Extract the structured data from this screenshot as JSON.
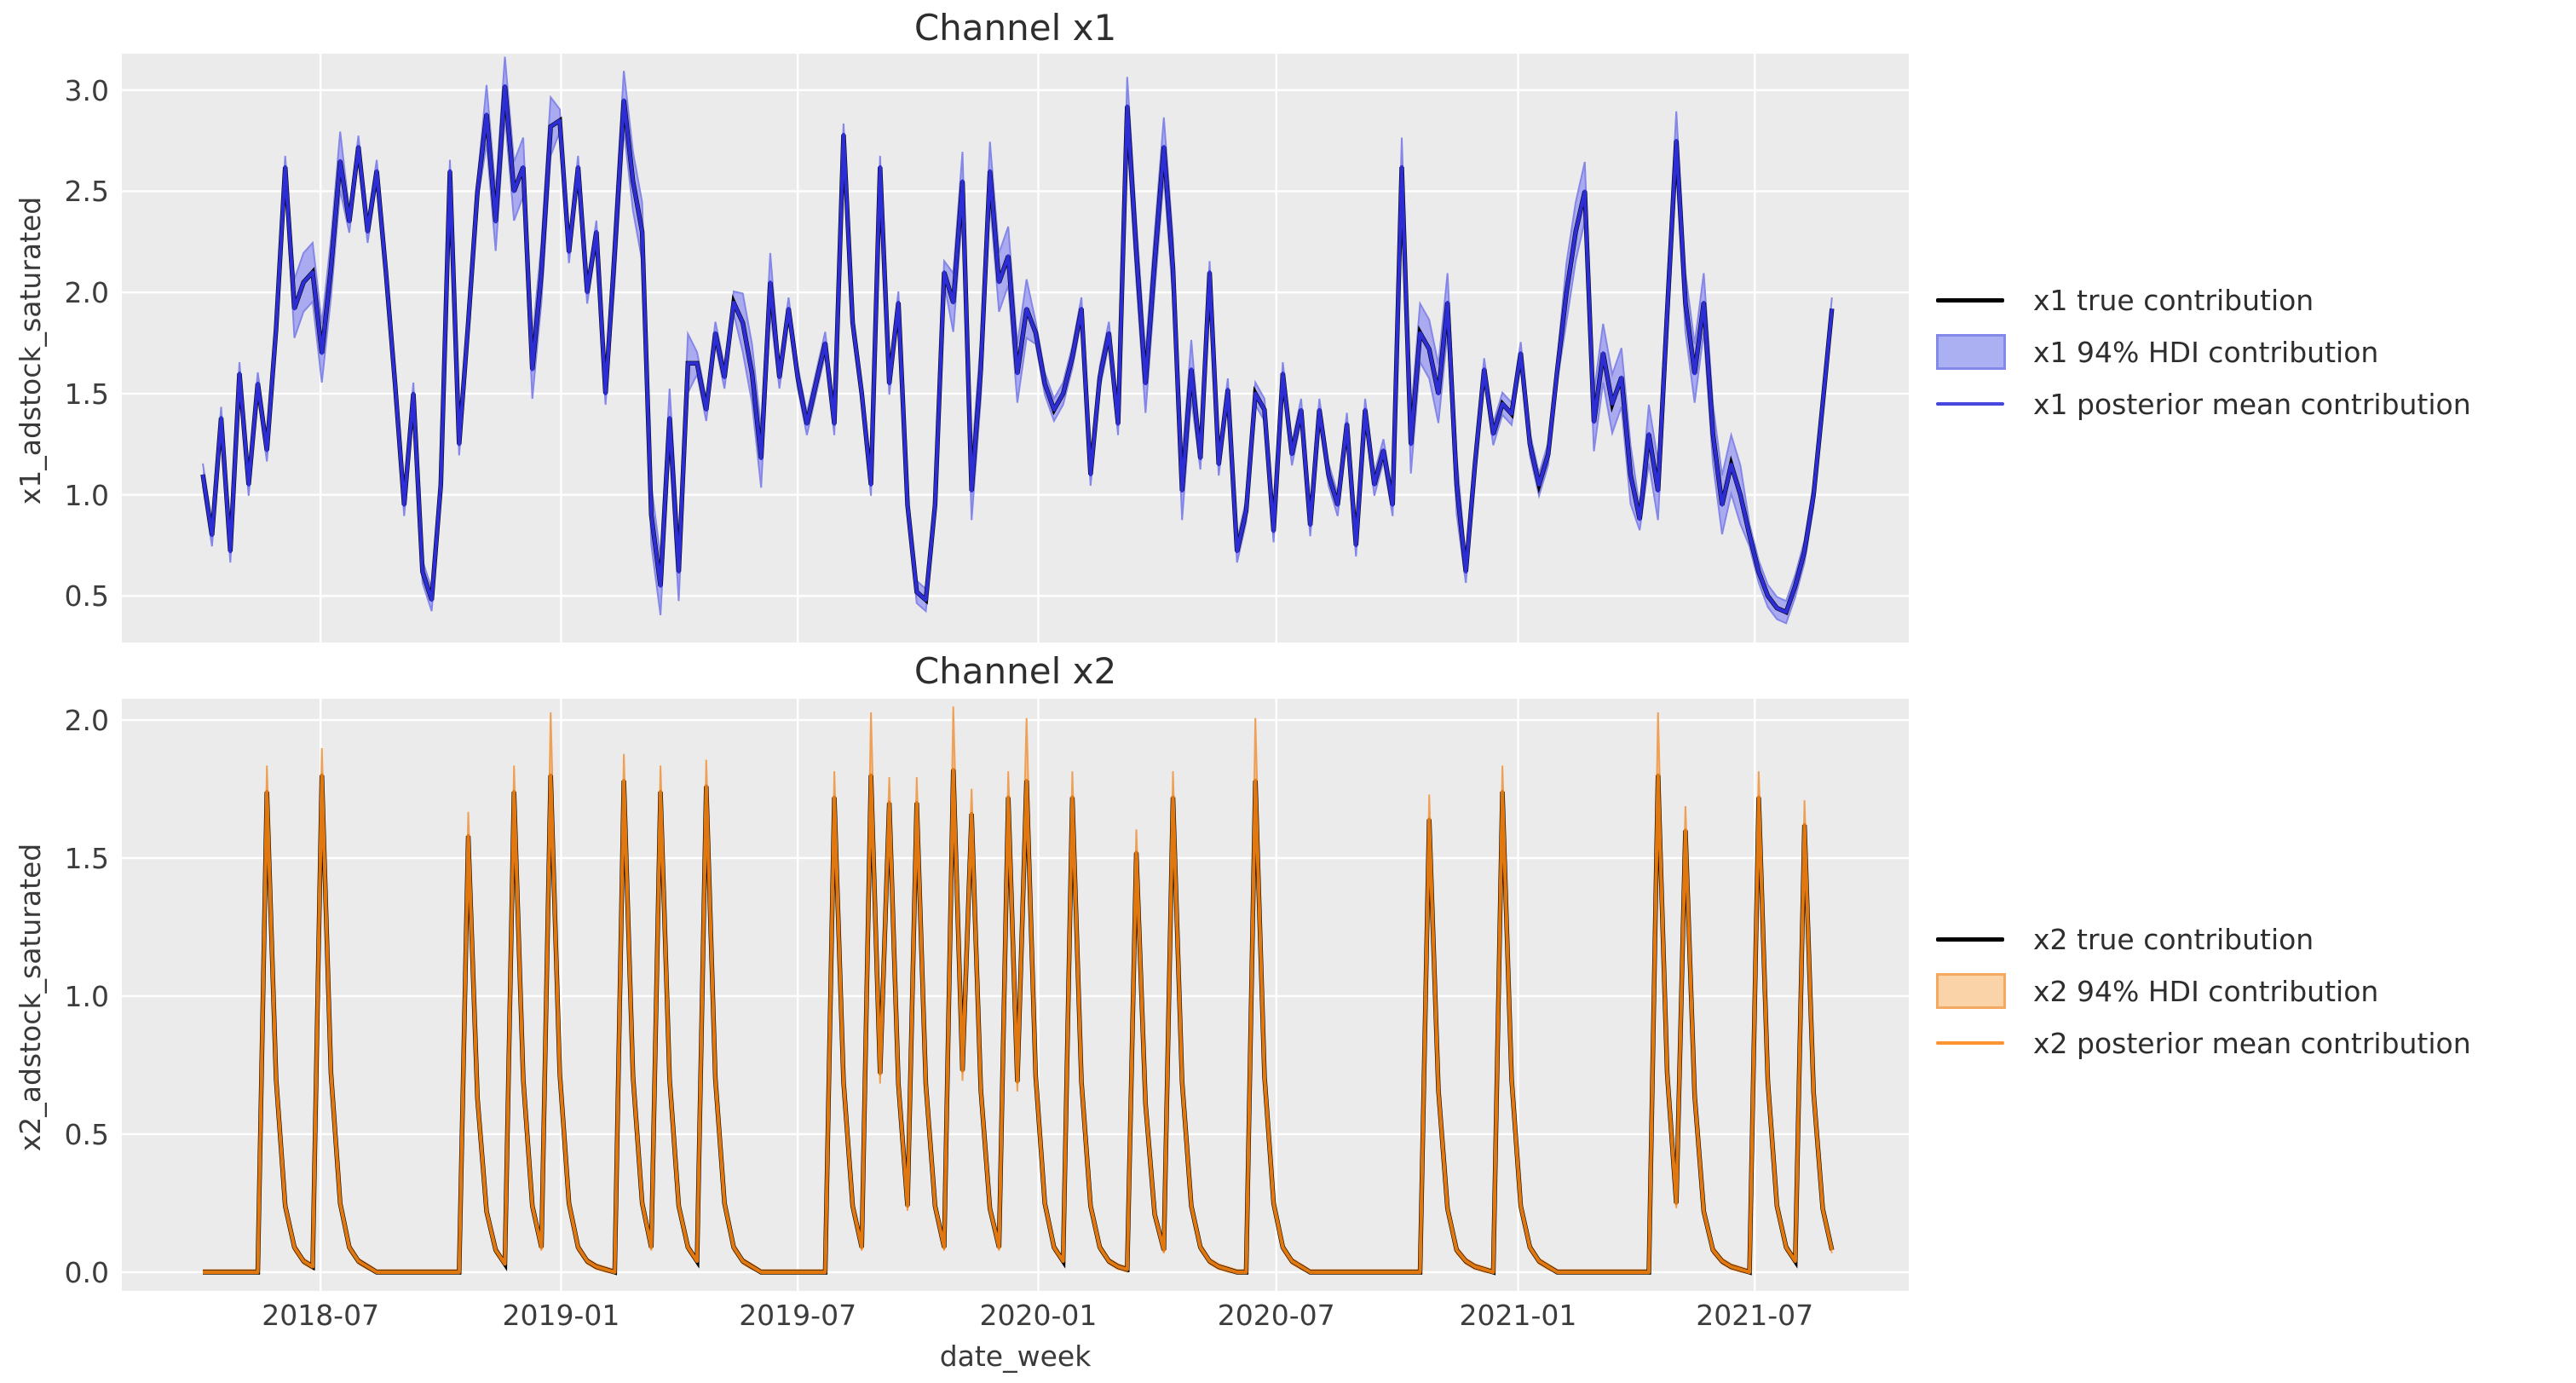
{
  "figure": {
    "xlabel": "date_week",
    "x_tick_labels": [
      "2018-07",
      "2019-01",
      "2019-07",
      "2020-01",
      "2020-07",
      "2021-01",
      "2021-07"
    ]
  },
  "colors": {
    "axes_background": "#ebebeb",
    "grid": "#ffffff",
    "true_line": "#000000",
    "x1_line": "#2d2dd6",
    "x1_band_fill": "#a9aaef",
    "x1_band_edge": "#8486e8",
    "x1_legend_line": "#4747dd",
    "x1_legend_box_fill": "#abb0f2",
    "x1_legend_box_edge": "#8289e8",
    "x2_line": "#e0770f",
    "x2_band_fill": "#f6c18d",
    "x2_band_edge": "#efa057",
    "x2_legend_line": "#ff9333",
    "x2_legend_box_fill": "#fbd3a8",
    "x2_legend_box_edge": "#f5a860"
  },
  "chart_data": [
    {
      "type": "line",
      "title": "Channel x1",
      "ylabel": "x1_adstock_saturated",
      "xlabel": "date_week",
      "x_start_date": "2018-04-02",
      "x_step_days": 7,
      "n_points": 179,
      "ylim": [
        0.27,
        3.18
      ],
      "yticks": [
        0.5,
        1.0,
        1.5,
        2.0,
        2.5,
        3.0
      ],
      "xticks": {
        "labels": [
          "2018-07",
          "2019-01",
          "2019-07",
          "2020-01",
          "2020-07",
          "2021-01",
          "2021-07"
        ],
        "week_positions": [
          12.86,
          39.14,
          65.0,
          91.29,
          117.29,
          143.71,
          169.57
        ]
      },
      "grid": true,
      "legend_position": "right",
      "legend": [
        "x1 true contribution",
        "x1 94% HDI contribution",
        "x1 posterior mean contribution"
      ],
      "posterior_mean": [
        1.1,
        0.8,
        1.38,
        0.72,
        1.6,
        1.05,
        1.55,
        1.22,
        1.82,
        2.62,
        1.92,
        2.05,
        2.1,
        1.7,
        2.12,
        2.65,
        2.35,
        2.72,
        2.3,
        2.6,
        2.1,
        1.55,
        0.95,
        1.5,
        0.62,
        0.48,
        1.05,
        2.6,
        1.25,
        1.85,
        2.5,
        2.88,
        2.35,
        3.02,
        2.5,
        2.62,
        1.62,
        2.1,
        2.82,
        2.85,
        2.2,
        2.62,
        2.0,
        2.3,
        1.5,
        2.2,
        2.95,
        2.55,
        2.3,
        0.9,
        0.55,
        1.38,
        0.62,
        1.65,
        1.65,
        1.42,
        1.8,
        1.58,
        1.95,
        1.85,
        1.6,
        1.18,
        2.05,
        1.58,
        1.92,
        1.58,
        1.35,
        1.55,
        1.75,
        1.35,
        2.78,
        1.85,
        1.5,
        1.05,
        2.62,
        1.55,
        1.95,
        0.95,
        0.52,
        0.48,
        0.95,
        2.1,
        1.95,
        2.55,
        1.02,
        1.62,
        2.6,
        2.05,
        2.18,
        1.6,
        1.92,
        1.8,
        1.55,
        1.42,
        1.5,
        1.68,
        1.92,
        1.1,
        1.58,
        1.8,
        1.35,
        2.92,
        2.2,
        1.55,
        2.15,
        2.72,
        2.12,
        1.02,
        1.62,
        1.18,
        2.1,
        1.15,
        1.52,
        0.72,
        0.92,
        1.5,
        1.42,
        0.82,
        1.6,
        1.2,
        1.42,
        0.85,
        1.42,
        1.1,
        0.95,
        1.35,
        0.75,
        1.42,
        1.05,
        1.22,
        0.95,
        2.62,
        1.25,
        1.8,
        1.72,
        1.5,
        1.95,
        1.05,
        0.62,
        1.15,
        1.62,
        1.3,
        1.45,
        1.4,
        1.7,
        1.25,
        1.05,
        1.2,
        1.62,
        2.0,
        2.3,
        2.5,
        1.36,
        1.7,
        1.45,
        1.58,
        1.1,
        0.88,
        1.3,
        1.02,
        1.9,
        2.75,
        1.95,
        1.6,
        1.95,
        1.3,
        0.95,
        1.15,
        1.0,
        0.8,
        0.62,
        0.5,
        0.44,
        0.42,
        0.55,
        0.72,
        1.0,
        1.45,
        1.92
      ],
      "true_contribution_source": "posterior_mean",
      "hdi": {
        "base_halfwidth": 0.055,
        "wide_halfwidth": 0.145,
        "wide_regions": [
          [
            10,
            15
          ],
          [
            31,
            38
          ],
          [
            45,
            53
          ],
          [
            59,
            62
          ],
          [
            82,
            90
          ],
          [
            101,
            108
          ],
          [
            131,
            137
          ],
          [
            149,
            156
          ],
          [
            158,
            168
          ]
        ]
      }
    },
    {
      "type": "line",
      "title": "Channel x2",
      "ylabel": "x2_adstock_saturated",
      "xlabel": "date_week",
      "x_start_date": "2018-04-02",
      "x_step_days": 7,
      "n_points": 179,
      "ylim": [
        -0.068,
        2.077
      ],
      "yticks": [
        0.0,
        0.5,
        1.0,
        1.5,
        2.0
      ],
      "xticks": {
        "labels": [
          "2018-07",
          "2019-01",
          "2019-07",
          "2020-01",
          "2020-07",
          "2021-01",
          "2021-07"
        ],
        "week_positions": [
          12.86,
          39.14,
          65.0,
          91.29,
          117.29,
          143.71,
          169.57
        ]
      },
      "grid": true,
      "legend_position": "right",
      "legend": [
        "x2 true contribution",
        "x2 94% HDI contribution",
        "x2 posterior mean contribution"
      ],
      "posterior_mean": [
        0,
        0,
        0,
        0,
        0,
        0,
        0,
        1.74,
        0.7,
        0.24,
        0.09,
        0.04,
        0.02,
        1.8,
        0.72,
        0.25,
        0.09,
        0.04,
        0.02,
        0,
        0,
        0,
        0,
        0,
        0,
        0,
        0,
        0,
        0,
        1.58,
        0.63,
        0.22,
        0.08,
        0.03,
        1.74,
        0.7,
        0.24,
        0.09,
        1.8,
        0.72,
        0.25,
        0.09,
        0.04,
        0.02,
        0.01,
        0,
        1.78,
        0.71,
        0.25,
        0.09,
        1.74,
        0.7,
        0.24,
        0.09,
        0.04,
        1.76,
        0.7,
        0.25,
        0.09,
        0.04,
        0.02,
        0,
        0,
        0,
        0,
        0,
        0,
        0,
        0,
        1.72,
        0.69,
        0.24,
        0.09,
        1.8,
        0.72,
        1.7,
        0.68,
        0.24,
        1.7,
        0.68,
        0.24,
        0.09,
        1.82,
        0.73,
        1.66,
        0.66,
        0.23,
        0.09,
        1.72,
        0.69,
        1.78,
        0.71,
        0.25,
        0.09,
        0.04,
        1.72,
        0.69,
        0.24,
        0.09,
        0.04,
        0.02,
        0.01,
        1.52,
        0.61,
        0.21,
        0.08,
        1.72,
        0.69,
        0.24,
        0.09,
        0.04,
        0.02,
        0.01,
        0,
        0,
        1.78,
        0.71,
        0.25,
        0.09,
        0.04,
        0.02,
        0,
        0,
        0,
        0,
        0,
        0,
        0,
        0,
        0,
        0,
        0,
        0,
        0,
        1.64,
        0.66,
        0.23,
        0.08,
        0.04,
        0.02,
        0.01,
        0,
        1.74,
        0.7,
        0.24,
        0.09,
        0.04,
        0.02,
        0,
        0,
        0,
        0,
        0,
        0,
        0,
        0,
        0,
        0,
        0,
        1.8,
        0.72,
        0.25,
        1.6,
        0.64,
        0.22,
        0.08,
        0.04,
        0.02,
        0.01,
        0,
        1.72,
        0.69,
        0.24,
        0.09,
        0.04,
        1.62,
        0.65,
        0.23,
        0.08
      ],
      "true_contribution_source": "posterior_mean",
      "hdi": {
        "lower_frac": 0.96,
        "upper_frac": 1.05,
        "pad": 0.008,
        "wide_peak_weeks": [
          38,
          73,
          82,
          90,
          115,
          159
        ],
        "wide_extra_upper": 0.13
      }
    }
  ]
}
